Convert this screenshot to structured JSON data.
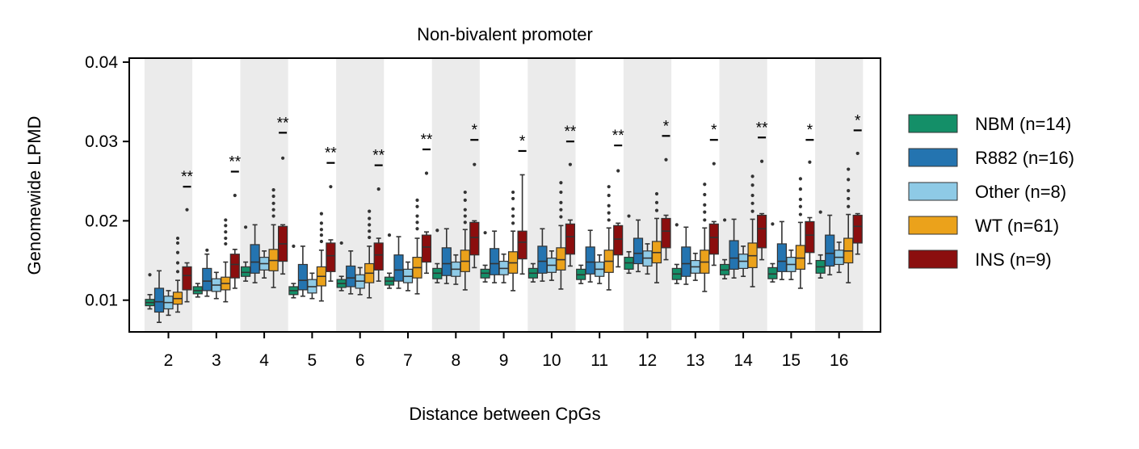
{
  "chart_data": {
    "type": "box",
    "title": "Non-bivalent promoter",
    "xlabel": "Distance between CpGs",
    "ylabel": "Genomewide LPMD",
    "ylim": [
      0.006,
      0.0405
    ],
    "yticks": [
      0.01,
      0.02,
      0.03,
      0.04
    ],
    "ytick_labels": [
      "0.01",
      "0.02",
      "0.03",
      "0.04"
    ],
    "categories": [
      "2",
      "3",
      "4",
      "5",
      "6",
      "7",
      "8",
      "9",
      "10",
      "11",
      "12",
      "13",
      "14",
      "15",
      "16"
    ],
    "legend_position": "right",
    "shaded_bands": "alternating",
    "series": [
      {
        "name": "NBM (n=14)",
        "color": "#148f68",
        "boxes": [
          [
            0.0089,
            0.0093,
            0.0097,
            0.0101,
            0.0107
          ],
          [
            0.0104,
            0.0108,
            0.0112,
            0.0117,
            0.0121
          ],
          [
            0.0124,
            0.013,
            0.0135,
            0.0142,
            0.0148
          ],
          [
            0.0103,
            0.0107,
            0.0112,
            0.0117,
            0.0121
          ],
          [
            0.0112,
            0.0116,
            0.0121,
            0.0126,
            0.013
          ],
          [
            0.0115,
            0.0119,
            0.0124,
            0.0129,
            0.0134
          ],
          [
            0.0122,
            0.0127,
            0.0134,
            0.014,
            0.0146
          ],
          [
            0.0123,
            0.0128,
            0.0134,
            0.0139,
            0.0144
          ],
          [
            0.0123,
            0.0128,
            0.0134,
            0.014,
            0.0146
          ],
          [
            0.0121,
            0.0126,
            0.0132,
            0.0139,
            0.0144
          ],
          [
            0.0134,
            0.0139,
            0.0147,
            0.0154,
            0.0161
          ],
          [
            0.0121,
            0.0126,
            0.0133,
            0.014,
            0.0145
          ],
          [
            0.0127,
            0.0132,
            0.0138,
            0.0145,
            0.0151
          ],
          [
            0.0123,
            0.0127,
            0.0133,
            0.0141,
            0.0146
          ],
          [
            0.0128,
            0.0134,
            0.0142,
            0.015,
            0.0157
          ]
        ],
        "outliers": [
          [
            0.0132
          ],
          [],
          [
            0.0192
          ],
          [
            0.0168
          ],
          [
            0.0172
          ],
          [
            0.0182
          ],
          [
            0.0188
          ],
          [
            0.0185
          ],
          [],
          [],
          [
            0.0206
          ],
          [
            0.0195
          ],
          [
            0.0201
          ],
          [
            0.0196
          ],
          [
            0.0211
          ]
        ]
      },
      {
        "name": "R882 (n=16)",
        "color": "#2474b0",
        "boxes": [
          [
            0.0072,
            0.0085,
            0.0098,
            0.0115,
            0.0137
          ],
          [
            0.0105,
            0.0112,
            0.0124,
            0.014,
            0.0158
          ],
          [
            0.0122,
            0.0134,
            0.0148,
            0.017,
            0.0195
          ],
          [
            0.0105,
            0.0113,
            0.0125,
            0.0145,
            0.0168
          ],
          [
            0.0108,
            0.0117,
            0.0128,
            0.0143,
            0.0162
          ],
          [
            0.0115,
            0.0124,
            0.0138,
            0.0157,
            0.018
          ],
          [
            0.0121,
            0.0131,
            0.0146,
            0.0166,
            0.019
          ],
          [
            0.0122,
            0.0132,
            0.0146,
            0.0165,
            0.0187
          ],
          [
            0.0124,
            0.0134,
            0.0149,
            0.0168,
            0.019
          ],
          [
            0.0123,
            0.0133,
            0.0148,
            0.0167,
            0.0188
          ],
          [
            0.0136,
            0.0146,
            0.0159,
            0.0178,
            0.0201
          ],
          [
            0.012,
            0.013,
            0.0146,
            0.0167,
            0.0192
          ],
          [
            0.0128,
            0.0139,
            0.0153,
            0.0175,
            0.0202
          ],
          [
            0.0126,
            0.0136,
            0.0149,
            0.0171,
            0.0199
          ],
          [
            0.0132,
            0.0143,
            0.0159,
            0.0182,
            0.0207
          ]
        ],
        "outliers": [
          [],
          [
            0.0163
          ],
          [],
          [],
          [],
          [],
          [],
          [],
          [],
          [],
          [],
          [],
          [],
          [],
          []
        ]
      },
      {
        "name": "Other (n=8)",
        "color": "#8ecae6",
        "boxes": [
          [
            0.0081,
            0.0089,
            0.0097,
            0.0105,
            0.0112
          ],
          [
            0.0102,
            0.0111,
            0.0119,
            0.0127,
            0.0135
          ],
          [
            0.0128,
            0.0138,
            0.0146,
            0.0154,
            0.0162
          ],
          [
            0.0102,
            0.0109,
            0.0117,
            0.0126,
            0.0134
          ],
          [
            0.0107,
            0.0115,
            0.0124,
            0.0132,
            0.0141
          ],
          [
            0.0112,
            0.0122,
            0.013,
            0.0139,
            0.0148
          ],
          [
            0.012,
            0.013,
            0.0139,
            0.0148,
            0.0157
          ],
          [
            0.0122,
            0.0132,
            0.014,
            0.0149,
            0.0158
          ],
          [
            0.0125,
            0.0135,
            0.0144,
            0.0153,
            0.0162
          ],
          [
            0.0121,
            0.013,
            0.0139,
            0.0148,
            0.0157
          ],
          [
            0.0133,
            0.0143,
            0.0153,
            0.0162,
            0.0171
          ],
          [
            0.0125,
            0.0134,
            0.0142,
            0.015,
            0.0159
          ],
          [
            0.013,
            0.014,
            0.0149,
            0.0158,
            0.0168
          ],
          [
            0.0126,
            0.0136,
            0.0145,
            0.0154,
            0.0163
          ],
          [
            0.0135,
            0.0145,
            0.0154,
            0.0163,
            0.0173
          ]
        ],
        "outliers": [
          [],
          [],
          [],
          [],
          [],
          [],
          [],
          [],
          [],
          [],
          [],
          [],
          [],
          [],
          []
        ]
      },
      {
        "name": "WT (n=61)",
        "color": "#eba21b",
        "boxes": [
          [
            0.0085,
            0.0095,
            0.0102,
            0.011,
            0.0125
          ],
          [
            0.0098,
            0.0113,
            0.0121,
            0.0129,
            0.0148
          ],
          [
            0.0116,
            0.0137,
            0.015,
            0.0164,
            0.0195
          ],
          [
            0.0099,
            0.0118,
            0.013,
            0.0142,
            0.0163
          ],
          [
            0.0103,
            0.0122,
            0.0134,
            0.0146,
            0.0168
          ],
          [
            0.0108,
            0.0128,
            0.0141,
            0.0154,
            0.0178
          ],
          [
            0.0113,
            0.0136,
            0.0149,
            0.0163,
            0.0189
          ],
          [
            0.0112,
            0.0134,
            0.0147,
            0.0161,
            0.0187
          ],
          [
            0.0114,
            0.0138,
            0.0151,
            0.0166,
            0.0194
          ],
          [
            0.0113,
            0.0135,
            0.0149,
            0.0163,
            0.0191
          ],
          [
            0.0122,
            0.0147,
            0.016,
            0.0174,
            0.0203
          ],
          [
            0.0111,
            0.0134,
            0.0148,
            0.0163,
            0.0191
          ],
          [
            0.0117,
            0.0141,
            0.0156,
            0.0172,
            0.0202
          ],
          [
            0.0115,
            0.0139,
            0.0153,
            0.0169,
            0.0198
          ],
          [
            0.0122,
            0.0147,
            0.0162,
            0.0178,
            0.0208
          ]
        ],
        "outliers": [
          [
            0.0136,
            0.0147,
            0.016,
            0.0172,
            0.0178
          ],
          [
            0.0171,
            0.0178,
            0.0186,
            0.0194,
            0.0201
          ],
          [
            0.0206,
            0.0214,
            0.0222,
            0.0231,
            0.0239
          ],
          [
            0.0174,
            0.0182,
            0.0189,
            0.0197,
            0.0209
          ],
          [
            0.0179,
            0.0187,
            0.0195,
            0.0203,
            0.0212
          ],
          [
            0.019,
            0.0198,
            0.0206,
            0.0218,
            0.0226
          ],
          [
            0.0198,
            0.0206,
            0.0214,
            0.0226,
            0.0236
          ],
          [
            0.0197,
            0.0206,
            0.0215,
            0.0228,
            0.0236
          ],
          [
            0.0205,
            0.0214,
            0.0223,
            0.0236,
            0.0248
          ],
          [
            0.0201,
            0.021,
            0.0219,
            0.0232,
            0.0243
          ],
          [
            0.0213,
            0.0223,
            0.0234
          ],
          [
            0.0201,
            0.0211,
            0.022,
            0.0233,
            0.0246
          ],
          [
            0.0212,
            0.0222,
            0.0232,
            0.0245,
            0.0256
          ],
          [
            0.0208,
            0.0218,
            0.0227,
            0.024,
            0.0253
          ],
          [
            0.0218,
            0.0228,
            0.0238,
            0.0252,
            0.0265
          ]
        ]
      },
      {
        "name": "INS (n=9)",
        "color": "#8b0e0e",
        "boxes": [
          [
            0.0098,
            0.0113,
            0.0131,
            0.0142,
            0.0147
          ],
          [
            0.0115,
            0.0128,
            0.0145,
            0.0158,
            0.0164
          ],
          [
            0.0133,
            0.0149,
            0.0171,
            0.0193,
            0.0195
          ],
          [
            0.0124,
            0.0136,
            0.0156,
            0.0172,
            0.0176
          ],
          [
            0.0124,
            0.0138,
            0.0157,
            0.0172,
            0.0178
          ],
          [
            0.0134,
            0.0148,
            0.0167,
            0.0182,
            0.0186
          ],
          [
            0.0141,
            0.0157,
            0.0179,
            0.0198,
            0.02
          ],
          [
            0.0133,
            0.0152,
            0.0173,
            0.0187,
            0.0258
          ],
          [
            0.0143,
            0.0158,
            0.018,
            0.0196,
            0.0201
          ],
          [
            0.0142,
            0.0157,
            0.0177,
            0.0194,
            0.0197
          ],
          [
            0.0151,
            0.0166,
            0.0187,
            0.0203,
            0.0207
          ],
          [
            0.0144,
            0.0158,
            0.0179,
            0.0196,
            0.0199
          ],
          [
            0.0151,
            0.0166,
            0.019,
            0.0207,
            0.0209
          ],
          [
            0.0146,
            0.016,
            0.0182,
            0.0199,
            0.0204
          ],
          [
            0.0158,
            0.0172,
            0.0193,
            0.0207,
            0.0209
          ]
        ],
        "outliers": [
          [
            0.0214
          ],
          [
            0.0232
          ],
          [
            0.0279
          ],
          [
            0.0243
          ],
          [
            0.024
          ],
          [
            0.026
          ],
          [
            0.0271
          ],
          [],
          [
            0.0271
          ],
          [
            0.0263
          ],
          [
            0.0277
          ],
          [
            0.0272
          ],
          [
            0.0275
          ],
          [
            0.0274
          ],
          [
            0.0285
          ]
        ]
      }
    ],
    "significance": [
      {
        "label": "**",
        "y": 0.0243
      },
      {
        "label": "**",
        "y": 0.0262
      },
      {
        "label": "**",
        "y": 0.0311
      },
      {
        "label": "**",
        "y": 0.0273
      },
      {
        "label": "**",
        "y": 0.027
      },
      {
        "label": "**",
        "y": 0.029
      },
      {
        "label": "*",
        "y": 0.0302
      },
      {
        "label": "*",
        "y": 0.0288
      },
      {
        "label": "**",
        "y": 0.03
      },
      {
        "label": "**",
        "y": 0.0295
      },
      {
        "label": "*",
        "y": 0.0307
      },
      {
        "label": "*",
        "y": 0.0302
      },
      {
        "label": "**",
        "y": 0.0305
      },
      {
        "label": "*",
        "y": 0.0302
      },
      {
        "label": "*",
        "y": 0.0314
      }
    ]
  }
}
